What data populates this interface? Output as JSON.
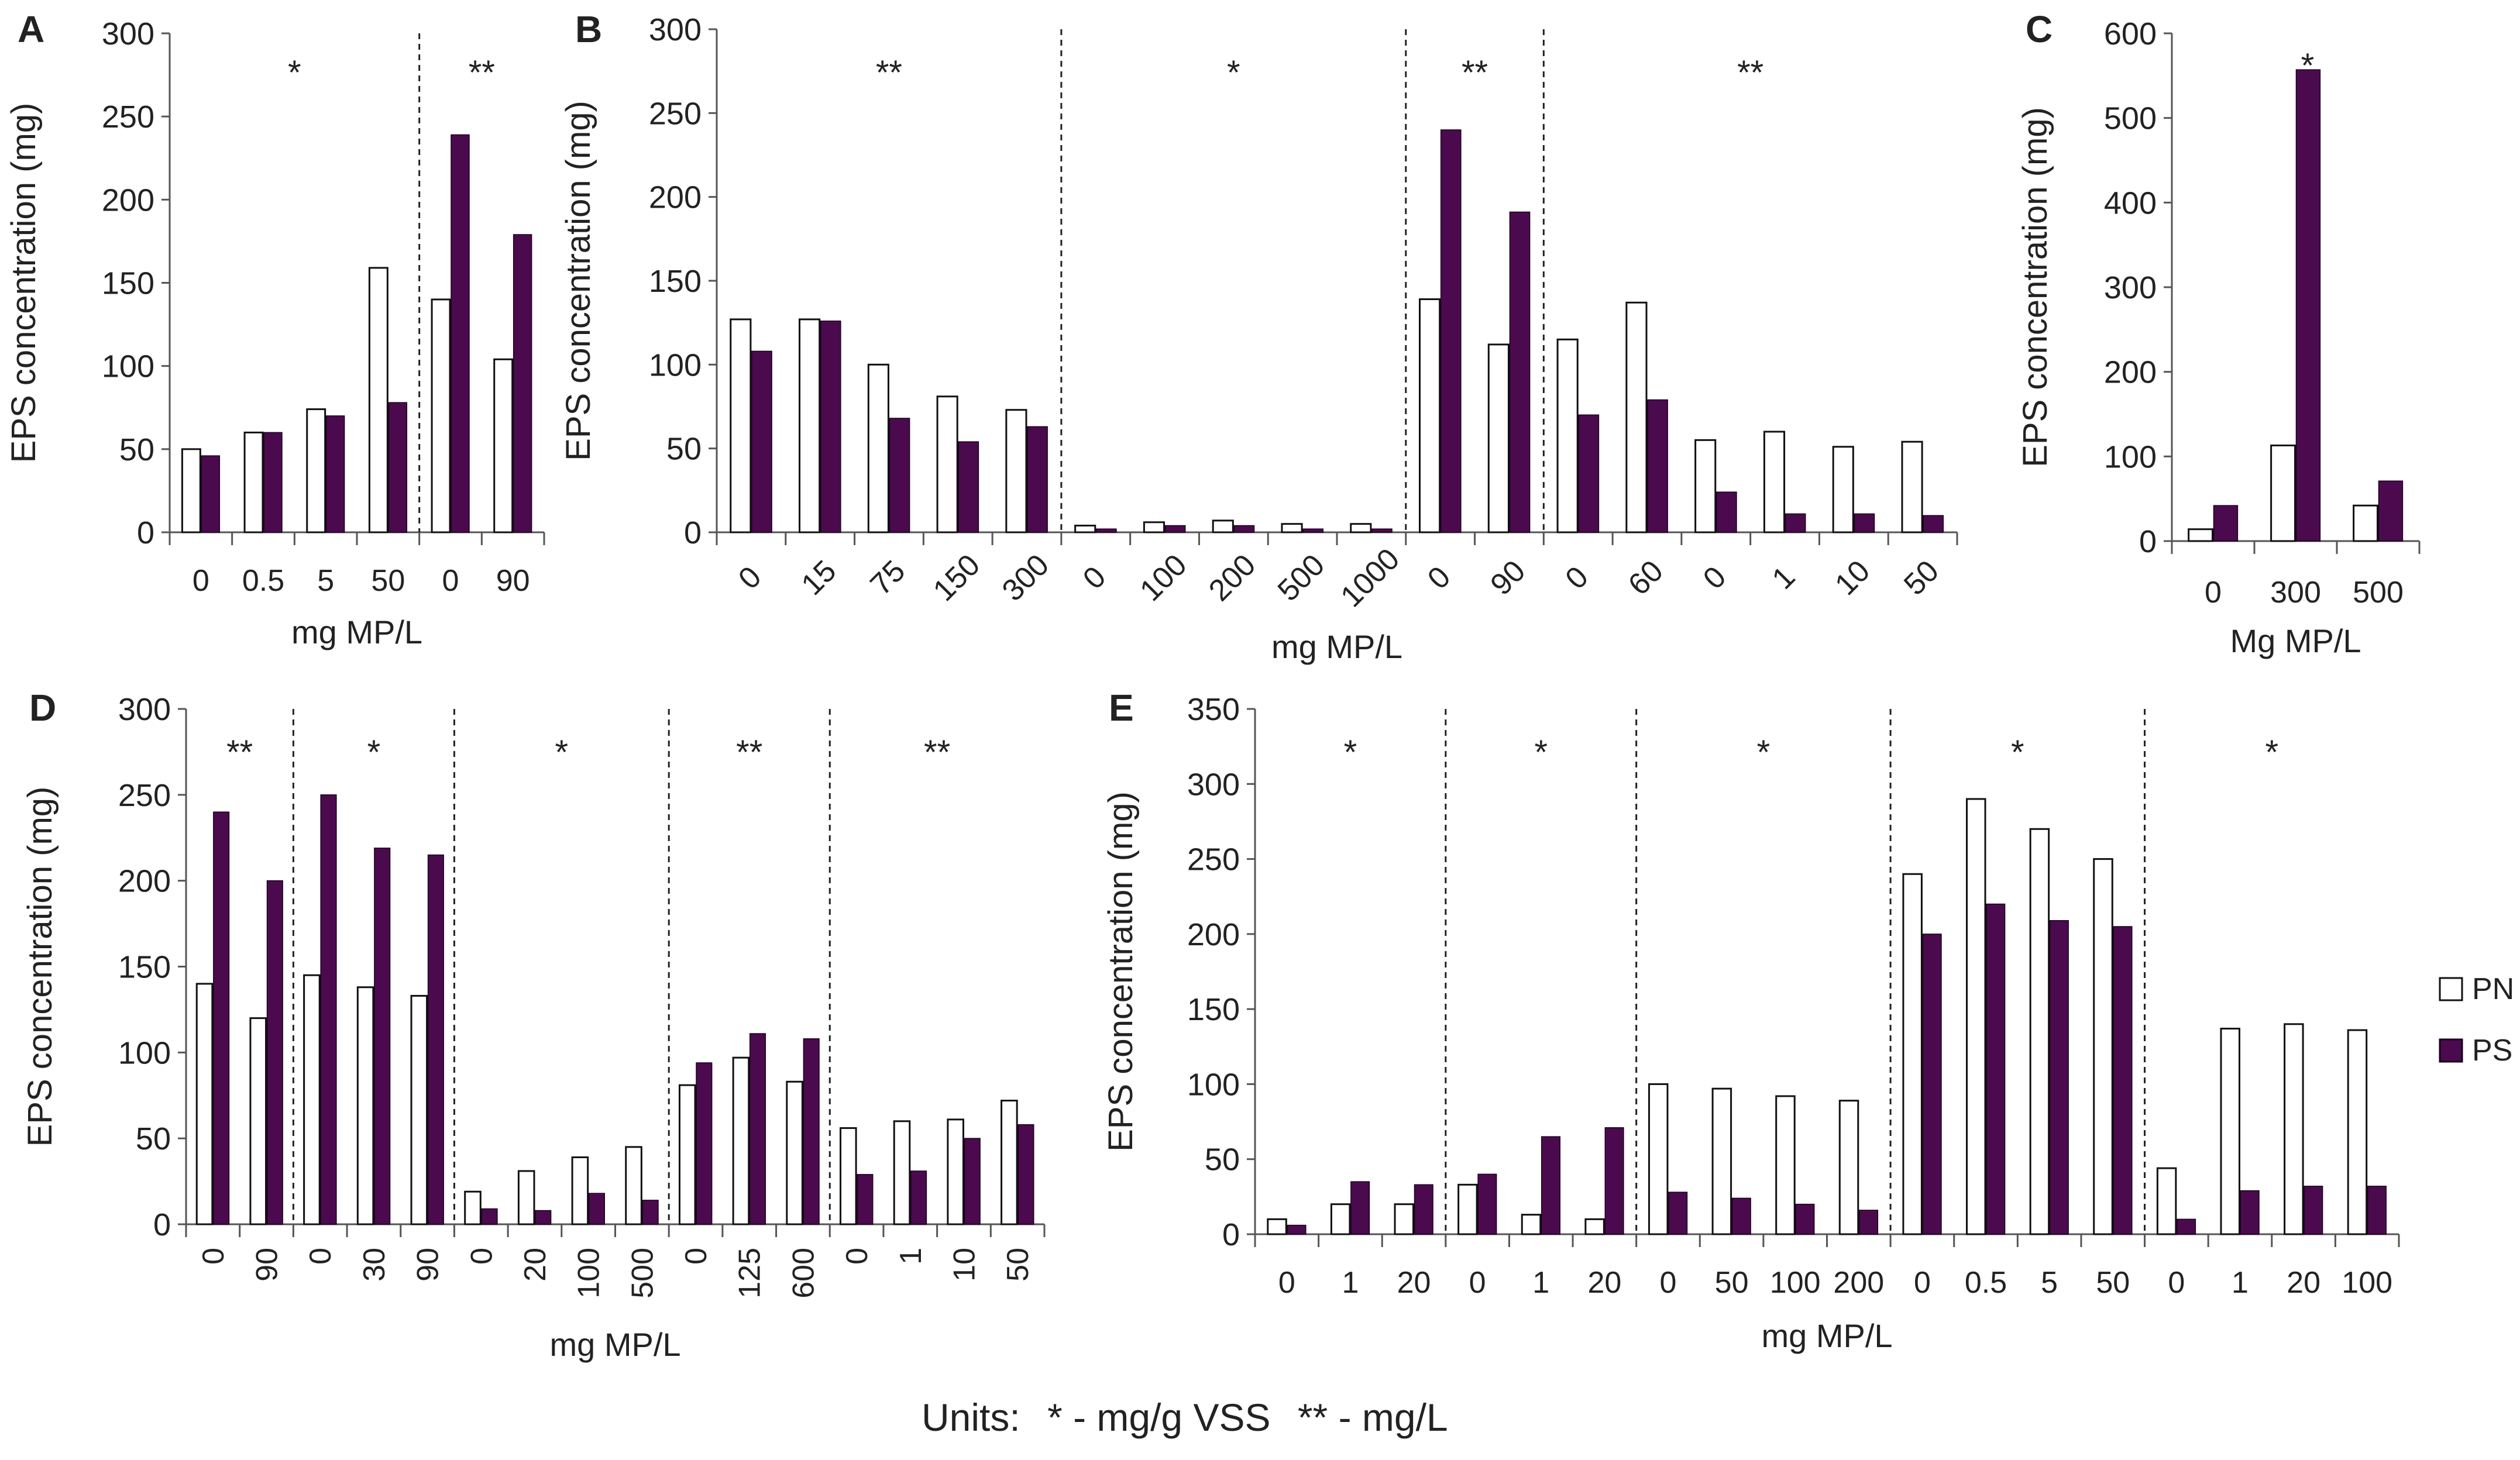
{
  "colors": {
    "pn": "#ffffff",
    "ps": "#4b0a4e",
    "axis": "#555555",
    "text": "#222222"
  },
  "legend": {
    "items": [
      "PN",
      "PS"
    ]
  },
  "units_line": {
    "label": "Units:",
    "star_note": "* - mg/g VSS",
    "double_star_note": "** - mg/L"
  },
  "chart_data": [
    {
      "id": "A",
      "type": "bar",
      "ylabel": "EPS concentration (mg)",
      "xlabel": "mg MP/L",
      "ylim": [
        0,
        300
      ],
      "yticks": [
        0,
        50,
        100,
        150,
        200,
        250,
        300
      ],
      "tick_rotation": 0,
      "categories": [
        "0",
        "0.5",
        "5",
        "50",
        "0",
        "90"
      ],
      "series": [
        {
          "name": "PN",
          "values": [
            50,
            60,
            74,
            159,
            140,
            104
          ]
        },
        {
          "name": "PS",
          "values": [
            46,
            60,
            70,
            78,
            239,
            179
          ]
        }
      ],
      "groups": [
        {
          "marker": "*",
          "count": 4
        },
        {
          "marker": "**",
          "count": 2
        }
      ]
    },
    {
      "id": "B",
      "type": "bar",
      "ylabel": "EPS concentration (mg)",
      "xlabel": "mg MP/L",
      "ylim": [
        0,
        300
      ],
      "yticks": [
        0,
        50,
        100,
        150,
        200,
        250,
        300
      ],
      "tick_rotation": -45,
      "categories": [
        "0",
        "15",
        "75",
        "150",
        "300",
        "0",
        "100",
        "200",
        "500",
        "1000",
        "0",
        "90",
        "0",
        "60",
        "0",
        "1",
        "10",
        "50"
      ],
      "series": [
        {
          "name": "PN",
          "values": [
            127,
            127,
            100,
            81,
            73,
            4,
            6,
            7,
            5,
            5,
            139,
            112,
            115,
            137,
            55,
            60,
            51,
            54
          ]
        },
        {
          "name": "PS",
          "values": [
            108,
            126,
            68,
            54,
            63,
            2,
            4,
            4,
            2,
            2,
            240,
            191,
            70,
            79,
            24,
            11,
            11,
            10
          ]
        }
      ],
      "groups": [
        {
          "marker": "**",
          "count": 5
        },
        {
          "marker": "*",
          "count": 5
        },
        {
          "marker": "**",
          "count": 2
        },
        {
          "marker": "**",
          "count": 6
        }
      ]
    },
    {
      "id": "C",
      "type": "bar",
      "ylabel": "EPS concentration (mg)",
      "xlabel": "Mg MP/L",
      "ylim": [
        0,
        600
      ],
      "yticks": [
        0,
        100,
        200,
        300,
        400,
        500,
        600
      ],
      "tick_rotation": 0,
      "categories": [
        "0",
        "300",
        "500"
      ],
      "series": [
        {
          "name": "PN",
          "values": [
            14,
            113,
            42
          ]
        },
        {
          "name": "PS",
          "values": [
            42,
            557,
            71
          ]
        }
      ],
      "groups": [
        {
          "marker": "*",
          "count": 3
        }
      ],
      "marker_over_bar": 1
    },
    {
      "id": "D",
      "type": "bar",
      "ylabel": "EPS concentration (mg)",
      "xlabel": "mg MP/L",
      "ylim": [
        0,
        300
      ],
      "yticks": [
        0,
        50,
        100,
        150,
        200,
        250,
        300
      ],
      "tick_rotation": -90,
      "categories": [
        "0",
        "90",
        "0",
        "30",
        "90",
        "0",
        "20",
        "100",
        "500",
        "0",
        "125",
        "600",
        "0",
        "1",
        "10",
        "50"
      ],
      "series": [
        {
          "name": "PN",
          "values": [
            140,
            120,
            145,
            138,
            133,
            19,
            31,
            39,
            45,
            81,
            97,
            83,
            56,
            60,
            61,
            72
          ]
        },
        {
          "name": "PS",
          "values": [
            240,
            200,
            250,
            219,
            215,
            9,
            8,
            18,
            14,
            94,
            111,
            108,
            29,
            31,
            50,
            58
          ]
        }
      ],
      "groups": [
        {
          "marker": "**",
          "count": 2
        },
        {
          "marker": "*",
          "count": 3
        },
        {
          "marker": "*",
          "count": 4
        },
        {
          "marker": "**",
          "count": 3
        },
        {
          "marker": "**",
          "count": 4
        }
      ]
    },
    {
      "id": "E",
      "type": "bar",
      "ylabel": "EPS concentration (mg)",
      "xlabel": "mg MP/L",
      "ylim": [
        0,
        350
      ],
      "yticks": [
        0,
        50,
        100,
        150,
        200,
        250,
        300,
        350
      ],
      "tick_rotation": 0,
      "categories": [
        "0",
        "1",
        "20",
        "0",
        "1",
        "20",
        "0",
        "50",
        "100",
        "200",
        "0",
        "0.5",
        "5",
        "50",
        "0",
        "1",
        "20",
        "100"
      ],
      "series": [
        {
          "name": "PN",
          "values": [
            10,
            20,
            20,
            33,
            13,
            10,
            100,
            97,
            92,
            89,
            240,
            290,
            270,
            250,
            44,
            137,
            140,
            136
          ]
        },
        {
          "name": "PS",
          "values": [
            6,
            35,
            33,
            40,
            65,
            71,
            28,
            24,
            20,
            16,
            200,
            220,
            209,
            205,
            10,
            29,
            32,
            32
          ]
        }
      ],
      "groups": [
        {
          "marker": "*",
          "count": 3
        },
        {
          "marker": "*",
          "count": 3
        },
        {
          "marker": "*",
          "count": 4
        },
        {
          "marker": "*",
          "count": 4
        },
        {
          "marker": "*",
          "count": 4
        }
      ]
    }
  ]
}
